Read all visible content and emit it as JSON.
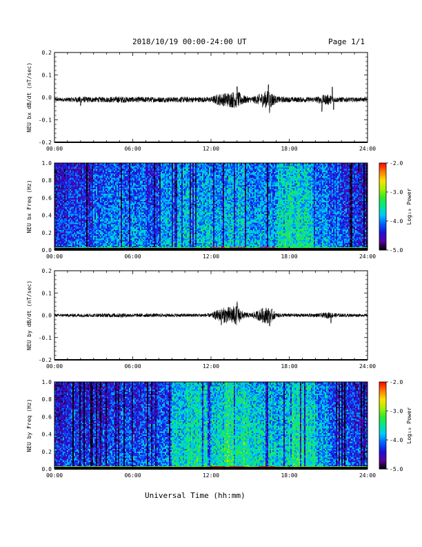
{
  "header": {
    "title": "2018/10/19  00:00-24:00 UT",
    "page": "Page 1/1"
  },
  "xlabel": "Universal Time (hh:mm)",
  "colors": {
    "trace": "#000000",
    "colorbar": [
      "#000000",
      "#5a00a0",
      "#1a10d8",
      "#0060ff",
      "#00c8ff",
      "#00e890",
      "#30e830",
      "#a8f000",
      "#ffe000",
      "#ff7800",
      "#ff0000"
    ]
  },
  "chart_data": [
    {
      "type": "line",
      "panel": "bx-timeseries",
      "ylabel": "NEU bx dB/dt (nT/sec)",
      "xticks": [
        "00:00",
        "06:00",
        "12:00",
        "18:00",
        "24:00"
      ],
      "xrange_hours": [
        0,
        24
      ],
      "ylim": [
        -0.2,
        0.2
      ],
      "yticks": [
        "-0.2",
        "-0.1",
        "0.0",
        "0.1",
        "0.2"
      ],
      "baseline": -0.01,
      "envelope": {
        "hours": [
          0,
          1,
          2,
          3,
          4,
          5,
          6,
          7,
          8,
          9,
          10,
          11,
          12,
          12.5,
          13,
          13.5,
          14,
          14.5,
          15,
          15.5,
          16,
          16.5,
          17,
          18,
          19,
          20,
          20.5,
          21,
          21.5,
          22,
          23,
          24
        ],
        "amplitude": [
          0.008,
          0.01,
          0.014,
          0.012,
          0.012,
          0.015,
          0.012,
          0.013,
          0.012,
          0.012,
          0.013,
          0.012,
          0.012,
          0.025,
          0.03,
          0.035,
          0.04,
          0.02,
          0.012,
          0.02,
          0.035,
          0.045,
          0.015,
          0.012,
          0.012,
          0.012,
          0.02,
          0.025,
          0.012,
          0.012,
          0.01,
          0.008
        ]
      },
      "spikes": [
        {
          "hour": 2.0,
          "value": -0.04
        },
        {
          "hour": 16.4,
          "value": 0.06
        },
        {
          "hour": 16.5,
          "value": -0.07
        },
        {
          "hour": 20.5,
          "value": -0.07
        },
        {
          "hour": 21.3,
          "value": 0.05
        },
        {
          "hour": 21.4,
          "value": -0.06
        },
        {
          "hour": 14.0,
          "value": 0.05
        }
      ]
    },
    {
      "type": "heatmap",
      "panel": "bx-spectrogram",
      "ylabel": "NEU bx Freq (Hz)",
      "xticks": [
        "00:00",
        "06:00",
        "12:00",
        "18:00",
        "24:00"
      ],
      "xrange_hours": [
        0,
        24
      ],
      "ylim": [
        0.0,
        1.0
      ],
      "yticks": [
        "0.0",
        "0.2",
        "0.4",
        "0.6",
        "0.8",
        "1.0"
      ],
      "colorbar": {
        "label": "Log₁₀ Power",
        "range": [
          -5.0,
          -2.0
        ],
        "ticks": [
          "-2.0",
          "-3.0",
          "-4.0",
          "-5.0"
        ]
      },
      "base_log_power_by_hour": [
        -4.3,
        -4.1,
        -4.2,
        -4.0,
        -3.9,
        -3.9,
        -3.9,
        -4.1,
        -3.8,
        -3.7,
        -3.7,
        -3.7,
        -3.8,
        -3.7,
        -3.7,
        -3.8,
        -3.9,
        -3.6,
        -3.5,
        -3.6,
        -3.9,
        -4.0,
        -4.1,
        -4.2
      ],
      "low_freq_band": {
        "max_hz": 0.04,
        "log_power": -3.2,
        "peak_hours": [
          12.5,
          14.0,
          16.3
        ],
        "peak_log_power": -2.1
      }
    },
    {
      "type": "line",
      "panel": "by-timeseries",
      "ylabel": "NEU by dB/dt (nT/sec)",
      "xticks": [
        "00:00",
        "06:00",
        "12:00",
        "18:00",
        "24:00"
      ],
      "xrange_hours": [
        0,
        24
      ],
      "ylim": [
        -0.2,
        0.2
      ],
      "yticks": [
        "-0.2",
        "-0.1",
        "0.0",
        "0.1",
        "0.2"
      ],
      "baseline": 0.0,
      "envelope": {
        "hours": [
          0,
          1,
          2,
          3,
          4,
          5,
          6,
          7,
          8,
          9,
          10,
          11,
          12,
          12.5,
          13,
          13.5,
          14,
          14.5,
          15,
          15.5,
          16,
          16.5,
          17,
          18,
          19,
          20,
          20.5,
          21,
          21.5,
          22,
          23,
          24
        ],
        "amplitude": [
          0.006,
          0.007,
          0.008,
          0.008,
          0.009,
          0.01,
          0.008,
          0.008,
          0.008,
          0.008,
          0.008,
          0.008,
          0.009,
          0.025,
          0.035,
          0.04,
          0.045,
          0.015,
          0.01,
          0.02,
          0.035,
          0.04,
          0.01,
          0.008,
          0.008,
          0.008,
          0.01,
          0.015,
          0.01,
          0.008,
          0.007,
          0.006
        ]
      },
      "spikes": [
        {
          "hour": 14.0,
          "value": 0.065
        },
        {
          "hour": 12.8,
          "value": -0.05
        },
        {
          "hour": 16.5,
          "value": -0.05
        },
        {
          "hour": 21.2,
          "value": -0.04
        }
      ]
    },
    {
      "type": "heatmap",
      "panel": "by-spectrogram",
      "ylabel": "NEU by Freq (Hz)",
      "xticks": [
        "00:00",
        "06:00",
        "12:00",
        "18:00",
        "24:00"
      ],
      "xrange_hours": [
        0,
        24
      ],
      "ylim": [
        0.0,
        1.0
      ],
      "yticks": [
        "0.0",
        "0.2",
        "0.4",
        "0.6",
        "0.8",
        "1.0"
      ],
      "colorbar": {
        "label": "Log₁₀ Power",
        "range": [
          -5.0,
          -2.0
        ],
        "ticks": [
          "-2.0",
          "-3.0",
          "-4.0",
          "-5.0"
        ]
      },
      "base_log_power_by_hour": [
        -4.3,
        -4.2,
        -4.2,
        -4.2,
        -4.1,
        -4.1,
        -4.1,
        -4.1,
        -4.0,
        -3.6,
        -3.5,
        -3.5,
        -3.6,
        -3.4,
        -3.4,
        -3.6,
        -3.6,
        -3.7,
        -3.4,
        -3.5,
        -3.8,
        -4.0,
        -4.1,
        -4.2
      ],
      "low_freq_band": {
        "max_hz": 0.04,
        "log_power": -3.1,
        "peak_hours": [
          12.5,
          14.0,
          16.3
        ],
        "peak_log_power": -2.1
      }
    }
  ]
}
